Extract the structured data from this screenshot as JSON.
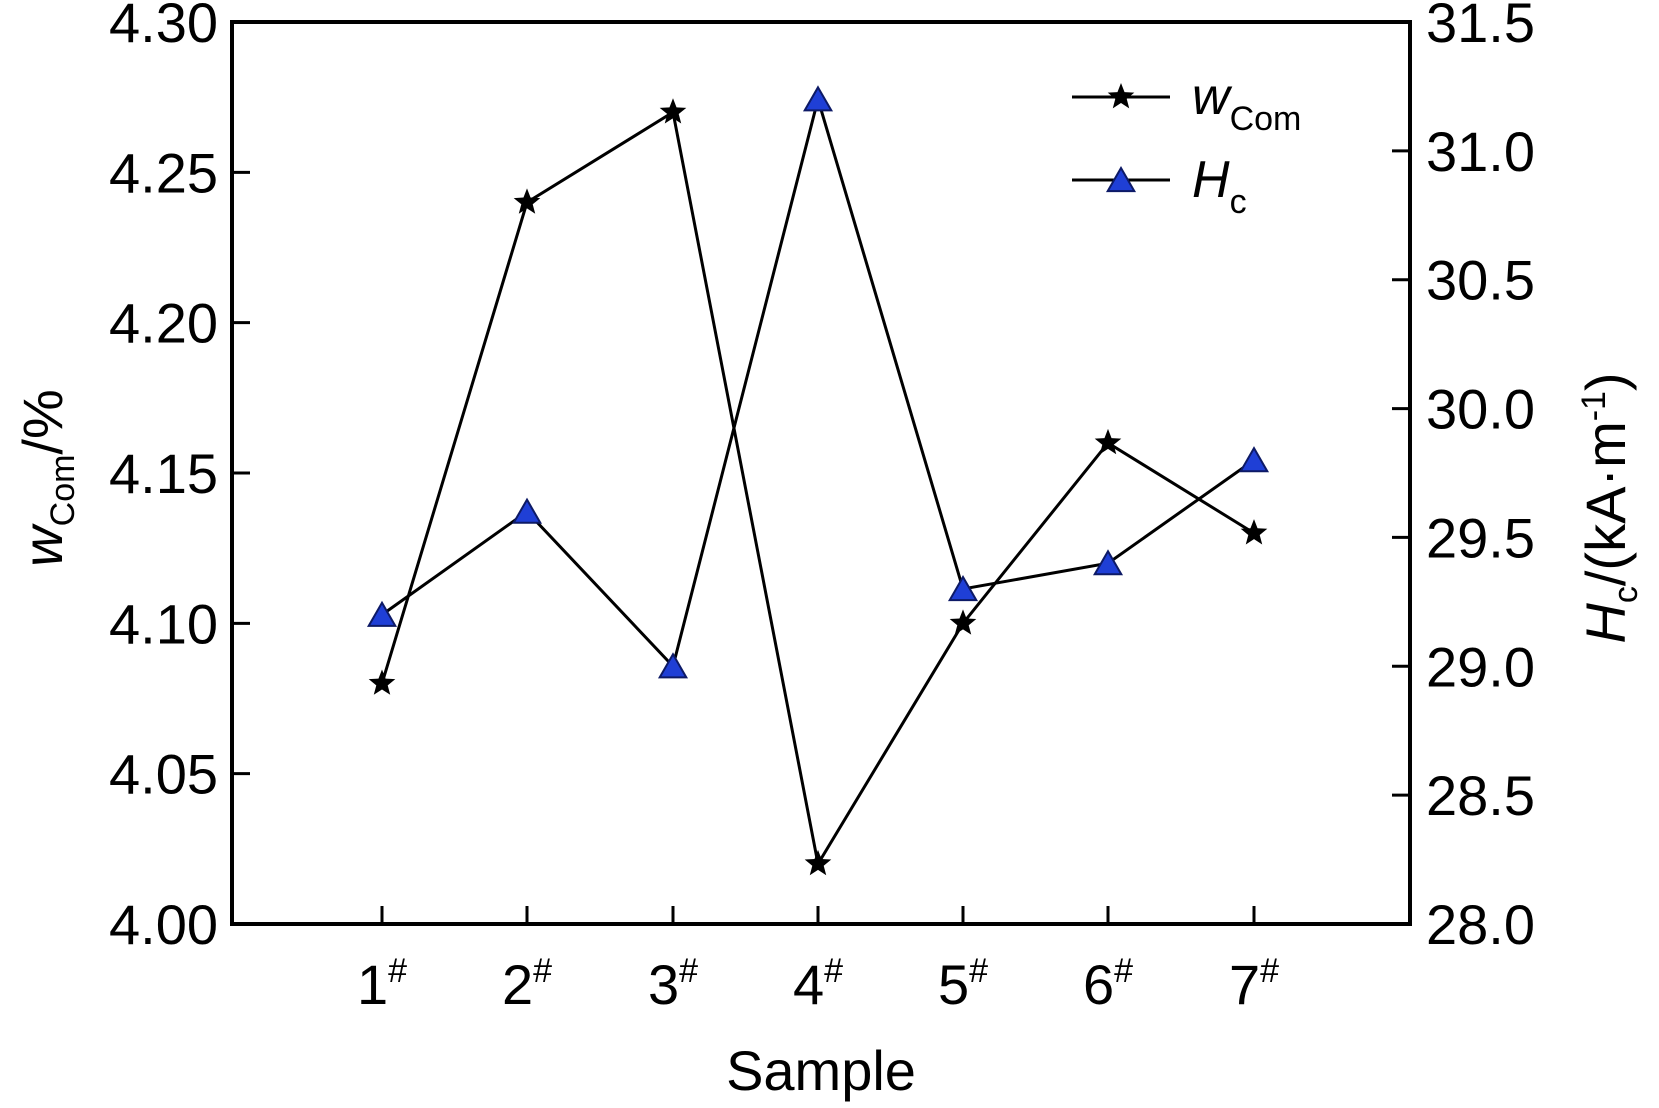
{
  "chart_data": {
    "type": "line",
    "categories": [
      "1#",
      "2#",
      "3#",
      "4#",
      "5#",
      "6#",
      "7#"
    ],
    "xlabel": "Sample",
    "y_left": {
      "label_main": "w",
      "label_sub": "Com",
      "label_suffix": "/%",
      "lim": [
        4.0,
        4.3
      ],
      "ticks": [
        "4.00",
        "4.05",
        "4.10",
        "4.15",
        "4.20",
        "4.25",
        "4.30"
      ],
      "tick_values": [
        4.0,
        4.05,
        4.1,
        4.15,
        4.2,
        4.25,
        4.3
      ]
    },
    "y_right": {
      "label_main": "H",
      "label_sub": "c",
      "label_suffix": "/(kA·m",
      "label_sup": "-1",
      "label_close": ")",
      "lim": [
        28.0,
        31.5
      ],
      "ticks": [
        "28.0",
        "28.5",
        "29.0",
        "29.5",
        "30.0",
        "30.5",
        "31.0",
        "31.5"
      ],
      "tick_values": [
        28.0,
        28.5,
        29.0,
        29.5,
        30.0,
        30.5,
        31.0,
        31.5
      ]
    },
    "series": [
      {
        "name_main": "w",
        "name_sub": "Com",
        "axis": "left",
        "marker": "star",
        "color": "#000000",
        "values": [
          4.08,
          4.24,
          4.27,
          4.02,
          4.1,
          4.16,
          4.13
        ]
      },
      {
        "name_main": "H",
        "name_sub": "c",
        "axis": "right",
        "marker": "triangle",
        "color": "#1f3fd6",
        "values": [
          29.2,
          29.6,
          29.0,
          31.2,
          29.3,
          29.4,
          29.8
        ]
      }
    ],
    "legend_position": "top-right",
    "grid": false
  }
}
